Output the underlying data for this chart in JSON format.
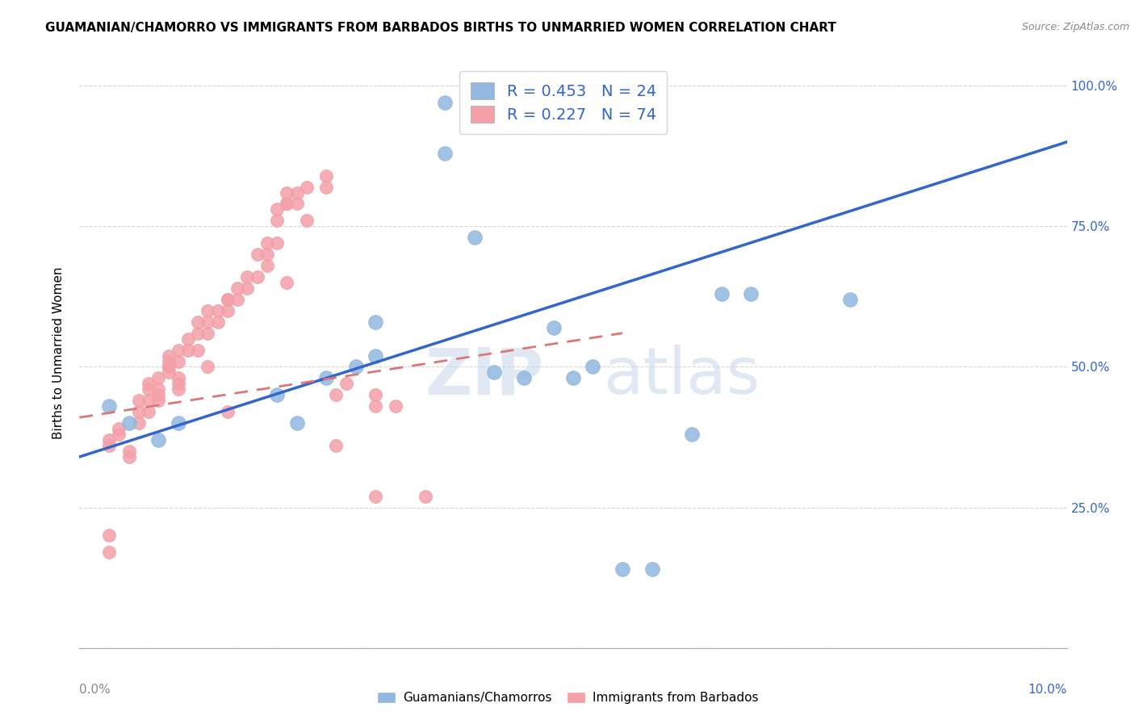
{
  "title": "GUAMANIAN/CHAMORRO VS IMMIGRANTS FROM BARBADOS BIRTHS TO UNMARRIED WOMEN CORRELATION CHART",
  "source": "Source: ZipAtlas.com",
  "ylabel": "Births to Unmarried Women",
  "ytick_labels_right": [
    "100.0%",
    "75.0%",
    "50.0%",
    "25.0%",
    ""
  ],
  "ytick_vals": [
    1.0,
    0.75,
    0.5,
    0.25,
    0.0
  ],
  "xlim": [
    0.0,
    0.1
  ],
  "ylim": [
    0.0,
    1.05
  ],
  "legend_entry1": "R = 0.453   N = 24",
  "legend_entry2": "R = 0.227   N = 74",
  "legend_label1": "Guamanians/Chamorros",
  "legend_label2": "Immigrants from Barbados",
  "blue_color": "#92b8e0",
  "pink_color": "#f4a0a8",
  "blue_line_color": "#3366cc",
  "pink_line_color": "#cc3333",
  "pink_dash_color": "#dd7777",
  "blue_line_x0": 0.0,
  "blue_line_y0": 0.34,
  "blue_line_x1": 0.1,
  "blue_line_y1": 0.9,
  "pink_line_x0": 0.0,
  "pink_line_y0": 0.41,
  "pink_line_x1": 0.055,
  "pink_line_y1": 0.56,
  "blue_scatter_x": [
    0.037,
    0.037,
    0.04,
    0.03,
    0.03,
    0.025,
    0.028,
    0.02,
    0.022,
    0.003,
    0.005,
    0.008,
    0.01,
    0.042,
    0.045,
    0.048,
    0.05,
    0.052,
    0.055,
    0.058,
    0.062,
    0.065,
    0.068,
    0.078
  ],
  "blue_scatter_y": [
    0.97,
    0.88,
    0.73,
    0.58,
    0.52,
    0.48,
    0.5,
    0.45,
    0.4,
    0.43,
    0.4,
    0.37,
    0.4,
    0.49,
    0.48,
    0.57,
    0.48,
    0.5,
    0.14,
    0.14,
    0.38,
    0.63,
    0.63,
    0.62
  ],
  "pink_scatter_x": [
    0.003,
    0.003,
    0.003,
    0.003,
    0.004,
    0.004,
    0.005,
    0.005,
    0.006,
    0.006,
    0.006,
    0.007,
    0.007,
    0.007,
    0.007,
    0.008,
    0.008,
    0.008,
    0.008,
    0.009,
    0.009,
    0.009,
    0.009,
    0.009,
    0.01,
    0.01,
    0.01,
    0.01,
    0.01,
    0.011,
    0.011,
    0.012,
    0.012,
    0.012,
    0.013,
    0.013,
    0.013,
    0.013,
    0.014,
    0.014,
    0.015,
    0.015,
    0.015,
    0.015,
    0.016,
    0.016,
    0.017,
    0.017,
    0.018,
    0.018,
    0.019,
    0.019,
    0.019,
    0.02,
    0.02,
    0.02,
    0.021,
    0.021,
    0.021,
    0.021,
    0.022,
    0.022,
    0.023,
    0.023,
    0.025,
    0.025,
    0.026,
    0.026,
    0.027,
    0.03,
    0.03,
    0.03,
    0.032,
    0.035
  ],
  "pink_scatter_y": [
    0.2,
    0.17,
    0.37,
    0.36,
    0.38,
    0.39,
    0.35,
    0.34,
    0.4,
    0.42,
    0.44,
    0.42,
    0.44,
    0.46,
    0.47,
    0.44,
    0.45,
    0.46,
    0.48,
    0.49,
    0.5,
    0.51,
    0.5,
    0.52,
    0.53,
    0.51,
    0.48,
    0.47,
    0.46,
    0.53,
    0.55,
    0.53,
    0.56,
    0.58,
    0.56,
    0.58,
    0.6,
    0.5,
    0.58,
    0.6,
    0.6,
    0.62,
    0.62,
    0.42,
    0.62,
    0.64,
    0.64,
    0.66,
    0.66,
    0.7,
    0.68,
    0.7,
    0.72,
    0.72,
    0.76,
    0.78,
    0.79,
    0.81,
    0.79,
    0.65,
    0.79,
    0.81,
    0.82,
    0.76,
    0.82,
    0.84,
    0.36,
    0.45,
    0.47,
    0.45,
    0.43,
    0.27,
    0.43,
    0.27
  ]
}
